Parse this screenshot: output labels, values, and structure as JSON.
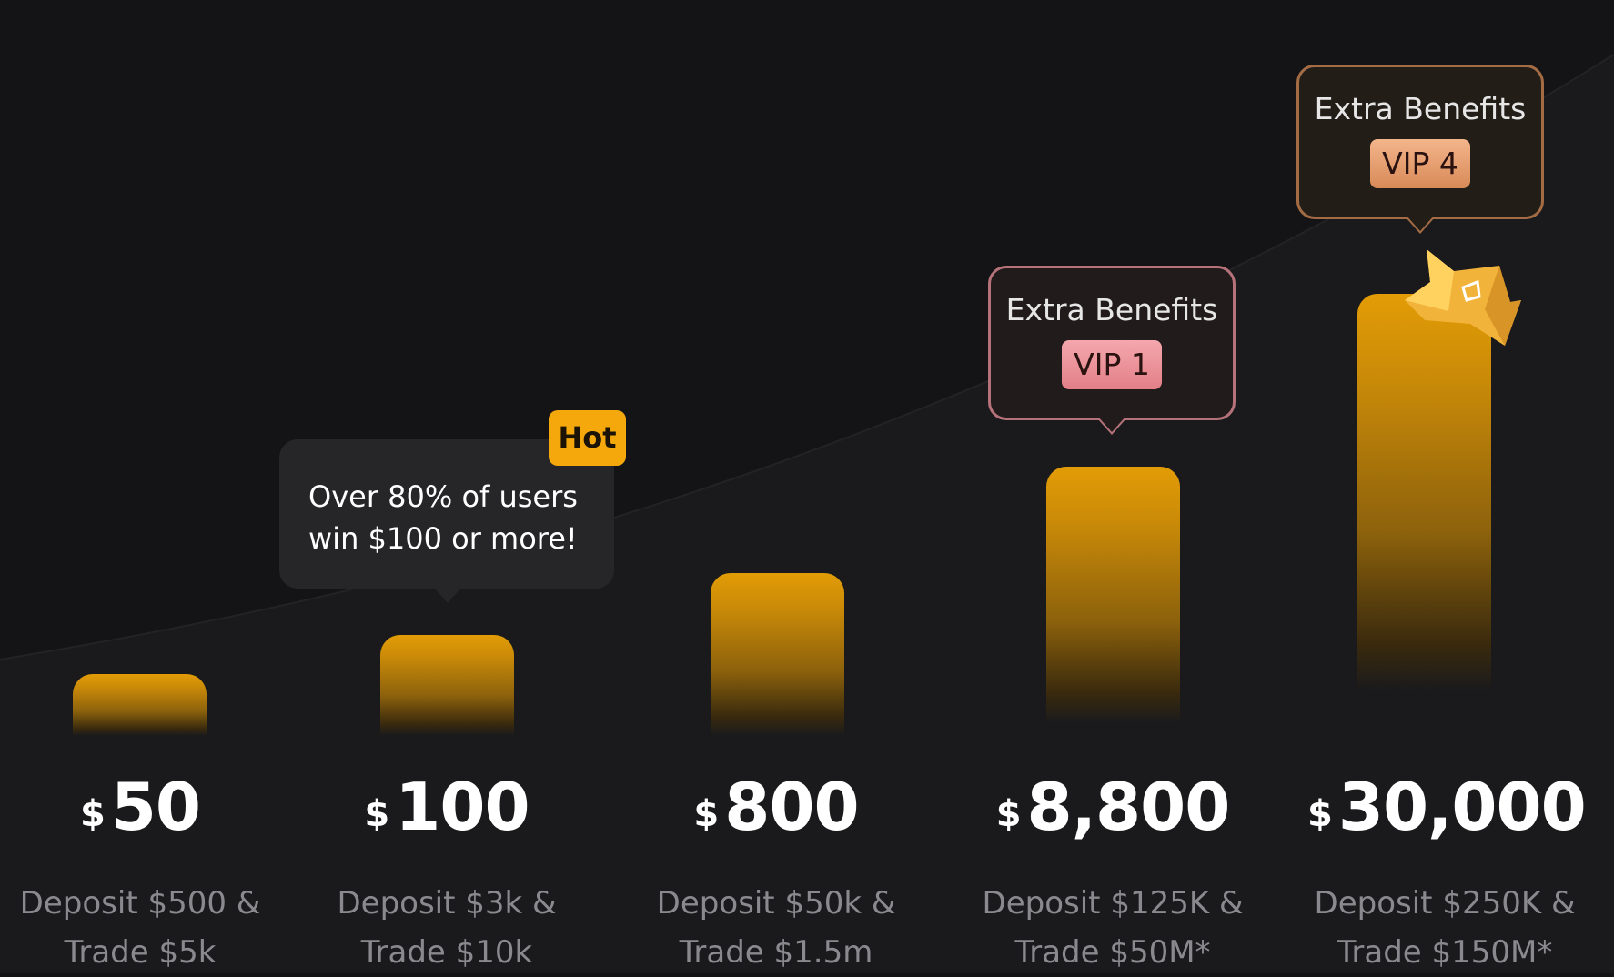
{
  "tiers": [
    {
      "currency": "$",
      "amount": "50",
      "requirement_line1": "Deposit $500 &",
      "requirement_line2": "Trade $5k"
    },
    {
      "currency": "$",
      "amount": "100",
      "requirement_line1": "Deposit $3k &",
      "requirement_line2": "Trade $10k"
    },
    {
      "currency": "$",
      "amount": "800",
      "requirement_line1": "Deposit $50k &",
      "requirement_line2": "Trade $1.5m"
    },
    {
      "currency": "$",
      "amount": "8,800",
      "requirement_line1": "Deposit $125K &",
      "requirement_line2": "Trade $50M*"
    },
    {
      "currency": "$",
      "amount": "30,000",
      "requirement_line1": "Deposit $250K &",
      "requirement_line2": "Trade $150M*"
    }
  ],
  "hot_tooltip": {
    "badge": "Hot",
    "line1": "Over 80% of users",
    "line2": "win $100 or more!"
  },
  "benefits": [
    {
      "title": "Extra Benefits",
      "badge": "VIP 1"
    },
    {
      "title": "Extra Benefits",
      "badge": "VIP 4"
    }
  ],
  "colors": {
    "background": "#141416",
    "bar_gold": "#e29c06",
    "hot_badge": "#f5a80b",
    "vip1_badge": "#f4a7ad",
    "vip4_badge": "#f3b58b"
  },
  "icons": {
    "top_tier": "crown-icon"
  }
}
